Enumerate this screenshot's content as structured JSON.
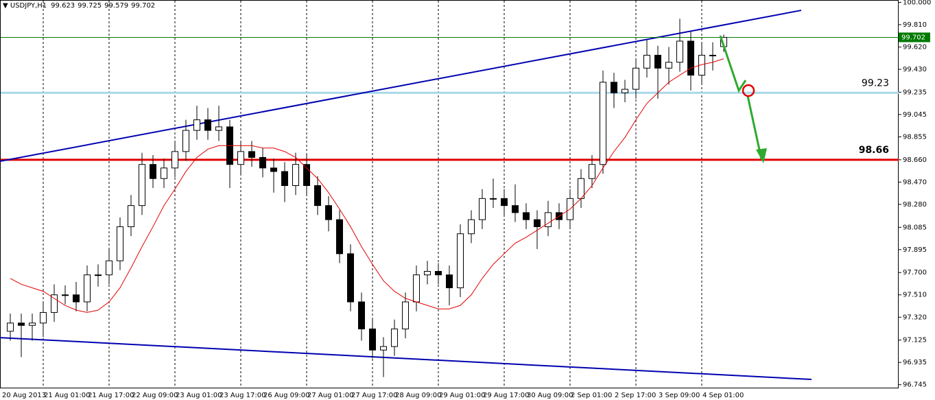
{
  "chart_data": {
    "type": "candlestick",
    "title": "USDJPY,H1",
    "up_color": "#ffffff",
    "down_color": "#000000",
    "wick_color": "#000000",
    "grid": true,
    "categories": [
      "20 Aug 2013",
      null,
      null,
      "21 Aug 01:00",
      null,
      null,
      null,
      "21 Aug 17:00",
      null,
      null,
      null,
      "22 Aug 09:00",
      null,
      null,
      null,
      "23 Aug 01:00",
      null,
      null,
      null,
      "23 Aug 17:00",
      null,
      null,
      null,
      "26 Aug 09:00",
      null,
      null,
      null,
      "27 Aug 01:00",
      null,
      null,
      null,
      "27 Aug 17:00",
      null,
      null,
      null,
      "28 Aug 09:00",
      null,
      null,
      null,
      "29 Aug 01:00",
      null,
      null,
      null,
      "29 Aug 17:00",
      null,
      null,
      null,
      "30 Aug 09:00",
      null,
      null,
      null,
      "2 Sep 01:00",
      null,
      null,
      null,
      "2 Sep 17:00",
      null,
      null,
      null,
      "3 Sep 09:00",
      null,
      null,
      null,
      "4 Sep 01:00",
      null,
      null
    ],
    "open": [
      97.2,
      97.27,
      97.25,
      97.27,
      97.36,
      97.51,
      97.51,
      97.45,
      97.68,
      97.68,
      97.8,
      98.09,
      98.27,
      98.62,
      98.5,
      98.59,
      98.73,
      98.91,
      99.0,
      98.91,
      98.94,
      98.62,
      98.73,
      98.68,
      98.59,
      98.56,
      98.44,
      98.62,
      98.44,
      98.27,
      98.15,
      97.86,
      97.45,
      97.22,
      97.04,
      97.07,
      97.22,
      97.45,
      97.68,
      97.71,
      97.68,
      97.57,
      98.03,
      98.15,
      98.33,
      98.33,
      98.27,
      98.21,
      98.15,
      98.09,
      98.21,
      98.15,
      98.33,
      98.5,
      98.62,
      99.32,
      99.23,
      99.26,
      99.44,
      99.55,
      99.44,
      99.49,
      99.67,
      99.38,
      99.55,
      99.623
    ],
    "high": [
      97.35,
      97.35,
      97.35,
      97.44,
      97.6,
      97.59,
      97.62,
      97.76,
      97.77,
      97.9,
      98.17,
      98.36,
      98.72,
      98.7,
      98.67,
      98.81,
      99.0,
      99.12,
      99.1,
      99.12,
      99.0,
      98.81,
      98.82,
      98.76,
      98.67,
      98.64,
      98.72,
      98.7,
      98.52,
      98.35,
      98.23,
      97.94,
      97.53,
      97.3,
      97.15,
      97.3,
      97.53,
      97.76,
      97.8,
      97.78,
      97.76,
      98.11,
      98.23,
      98.41,
      98.5,
      98.41,
      98.45,
      98.29,
      98.23,
      98.31,
      98.29,
      98.41,
      98.58,
      98.7,
      99.42,
      99.4,
      99.34,
      99.52,
      99.68,
      99.63,
      99.62,
      99.86,
      99.75,
      99.66,
      99.66,
      99.725
    ],
    "low": [
      97.12,
      96.98,
      97.12,
      97.15,
      97.28,
      97.43,
      97.37,
      97.37,
      97.58,
      97.6,
      97.72,
      98.01,
      98.19,
      98.42,
      98.42,
      98.51,
      98.65,
      98.83,
      98.83,
      98.82,
      98.42,
      98.54,
      98.6,
      98.51,
      98.38,
      98.3,
      98.36,
      98.36,
      98.19,
      98.05,
      97.78,
      97.37,
      97.12,
      96.97,
      96.81,
      96.99,
      97.14,
      97.37,
      97.6,
      97.6,
      97.42,
      97.49,
      97.95,
      98.07,
      98.25,
      98.19,
      98.13,
      98.07,
      97.9,
      98.01,
      98.07,
      98.07,
      98.25,
      98.42,
      98.54,
      99.1,
      99.15,
      99.18,
      99.36,
      99.18,
      99.3,
      99.41,
      99.25,
      99.3,
      99.42,
      99.579
    ],
    "close": [
      97.27,
      97.25,
      97.27,
      97.36,
      97.51,
      97.51,
      97.45,
      97.68,
      97.68,
      97.8,
      98.09,
      98.27,
      98.62,
      98.5,
      98.59,
      98.73,
      98.91,
      99.0,
      98.91,
      98.94,
      98.62,
      98.73,
      98.68,
      98.59,
      98.56,
      98.44,
      98.62,
      98.44,
      98.27,
      98.15,
      97.86,
      97.45,
      97.22,
      97.04,
      97.07,
      97.22,
      97.45,
      97.68,
      97.71,
      97.68,
      97.57,
      98.03,
      98.15,
      98.33,
      98.33,
      98.27,
      98.21,
      98.15,
      98.09,
      98.21,
      98.15,
      98.33,
      98.5,
      98.62,
      99.32,
      99.23,
      99.26,
      99.44,
      99.55,
      99.44,
      99.49,
      99.67,
      99.38,
      99.55,
      99.55,
      99.702
    ],
    "moving_average": {
      "color": "#e00000",
      "values": [
        97.65,
        97.6,
        97.57,
        97.54,
        97.48,
        97.42,
        97.38,
        97.36,
        97.38,
        97.45,
        97.57,
        97.74,
        97.92,
        98.09,
        98.27,
        98.41,
        98.56,
        98.68,
        98.75,
        98.78,
        98.78,
        98.78,
        98.78,
        98.76,
        98.76,
        98.73,
        98.68,
        98.59,
        98.5,
        98.38,
        98.24,
        98.09,
        97.92,
        97.77,
        97.63,
        97.54,
        97.48,
        97.45,
        97.42,
        97.39,
        97.39,
        97.42,
        97.51,
        97.65,
        97.77,
        97.86,
        97.95,
        98.0,
        98.06,
        98.12,
        98.18,
        98.24,
        98.33,
        98.44,
        98.59,
        98.73,
        98.85,
        99.0,
        99.14,
        99.23,
        99.32,
        99.38,
        99.44,
        99.47,
        99.49,
        99.52
      ]
    },
    "trendlines": [
      {
        "color": "#0000b0",
        "values": [
          98.647,
          99.932
        ]
      },
      {
        "color": "#0000b0",
        "values": [
          97.146,
          96.79
        ]
      }
    ],
    "levels": [
      {
        "value": 99.23,
        "color": "#a8d8ea"
      },
      {
        "value": 98.66,
        "color": "#e00000"
      }
    ],
    "price_line_color": "#007a00",
    "ylim": [
      96.72,
      100.02
    ],
    "yticks": [
      {
        "value": 100,
        "label": "100.000"
      },
      {
        "value": 99.81,
        "label": "99.810"
      },
      {
        "value": 99.62,
        "label": "99.620"
      },
      {
        "value": 99.43,
        "label": "99.430"
      },
      99.235,
      99.045,
      98.855,
      {
        "value": 98.66,
        "label": "98.660"
      },
      {
        "value": 98.47,
        "label": "98.470"
      },
      {
        "value": 98.28,
        "label": "98.280"
      },
      98.085,
      97.895,
      {
        "value": 97.7,
        "label": "97.700"
      },
      {
        "value": 97.51,
        "label": "97.510"
      },
      {
        "value": 97.32,
        "label": "97.320"
      },
      97.125,
      96.935,
      96.745
    ]
  }
}
